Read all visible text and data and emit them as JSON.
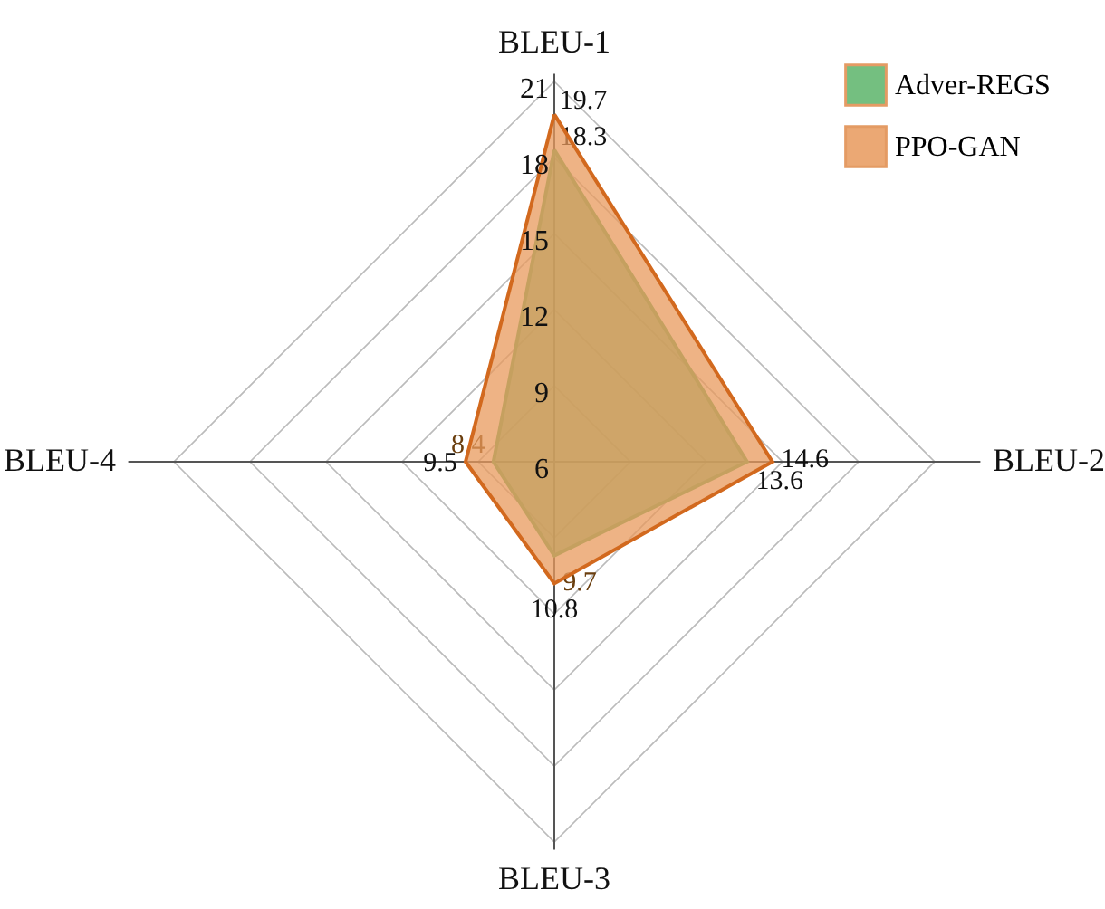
{
  "chart_data": {
    "type": "radar",
    "categories": [
      "BLEU-1",
      "BLEU-2",
      "BLEU-3",
      "BLEU-4"
    ],
    "series": [
      {
        "name": "Adver-REGS",
        "color": "#5cb46a",
        "values": [
          18.3,
          13.6,
          9.7,
          8.4
        ]
      },
      {
        "name": "PPO-GAN",
        "color": "#e89a5c",
        "values": [
          19.7,
          14.6,
          10.8,
          9.5
        ]
      }
    ],
    "ylim": [
      6,
      21
    ],
    "yticks": [
      6,
      9,
      12,
      15,
      18,
      21
    ],
    "grid": true,
    "legend": "top right",
    "data_labels": true
  }
}
